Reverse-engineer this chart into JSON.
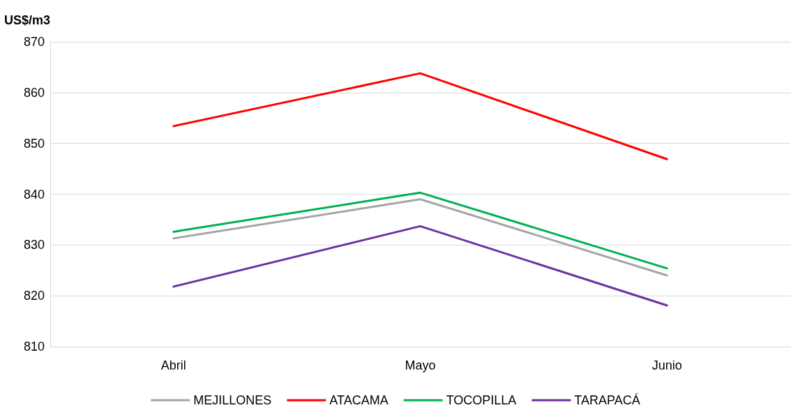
{
  "chart_data": {
    "type": "line",
    "ylabel": "US$/m3",
    "categories": [
      "Abril",
      "Mayo",
      "Junio"
    ],
    "series": [
      {
        "name": "MEJILLONES",
        "color": "#a5a5a5",
        "values": [
          831.3,
          839.0,
          824.0
        ]
      },
      {
        "name": "ATACAMA",
        "color": "#ff0000",
        "values": [
          853.4,
          863.8,
          846.9
        ]
      },
      {
        "name": "TOCOPILLA",
        "color": "#00b050",
        "values": [
          832.6,
          840.3,
          825.4
        ]
      },
      {
        "name": "TARAPACÁ",
        "color": "#7030a0",
        "values": [
          821.8,
          833.7,
          818.1
        ]
      }
    ],
    "ylim": [
      810,
      870
    ],
    "yticks": [
      810,
      820,
      830,
      840,
      850,
      860,
      870
    ],
    "grid": "y",
    "legend": "bottom",
    "marker": "none",
    "line_style": "solid"
  }
}
